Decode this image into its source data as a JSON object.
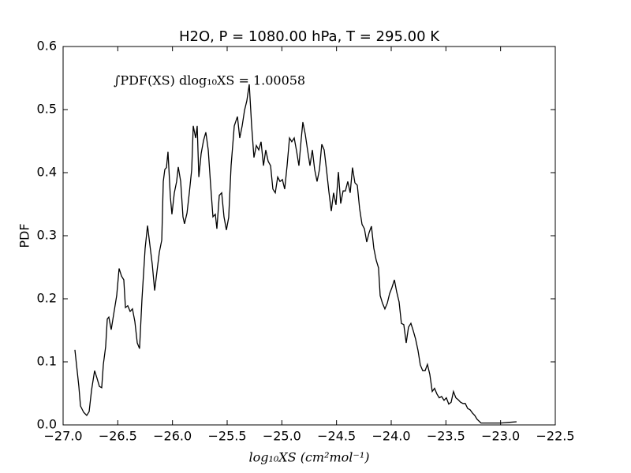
{
  "chart_data": {
    "type": "line",
    "title": "H2O, P = 1080.00 hPa, T = 295.00 K",
    "x_label": "log₁₀XS (cm²mol⁻¹)",
    "y_label": "PDF",
    "annotation": "∫PDF(XS) dlog₁₀XS = 1.00058",
    "xlim": [
      -27,
      -22.5
    ],
    "ylim": [
      0,
      0.6
    ],
    "xticks": [
      {
        "value": -27,
        "label": "−27.0"
      },
      {
        "value": -26.5,
        "label": "−26.5"
      },
      {
        "value": -26,
        "label": "−26.0"
      },
      {
        "value": -25.5,
        "label": "−25.5"
      },
      {
        "value": -25,
        "label": "−25.0"
      },
      {
        "value": -24.5,
        "label": "−24.5"
      },
      {
        "value": -24,
        "label": "−24.0"
      },
      {
        "value": -23.5,
        "label": "−23.5"
      },
      {
        "value": -23,
        "label": "−23.0"
      },
      {
        "value": -22.5,
        "label": "−22.5"
      }
    ],
    "yticks": [
      {
        "value": 0,
        "label": "0.0"
      },
      0.1,
      0.2,
      0.3,
      0.4,
      0.5,
      0.6
    ],
    "grid": false,
    "color": "#000000",
    "x": [
      -26.892,
      -26.856,
      -26.841,
      -26.812,
      -26.784,
      -26.762,
      -26.74,
      -26.712,
      -26.69,
      -26.668,
      -26.647,
      -26.632,
      -26.611,
      -26.596,
      -26.582,
      -26.56,
      -26.539,
      -26.51,
      -26.488,
      -26.466,
      -26.445,
      -26.43,
      -26.409,
      -26.387,
      -26.366,
      -26.344,
      -26.322,
      -26.301,
      -26.279,
      -26.25,
      -26.228,
      -26.207,
      -26.185,
      -26.163,
      -26.142,
      -26.12,
      -26.098,
      -26.084,
      -26.07,
      -26.055,
      -26.041,
      -26.019,
      -26.005,
      -25.983,
      -25.962,
      -25.947,
      -25.925,
      -25.904,
      -25.89,
      -25.867,
      -25.846,
      -25.824,
      -25.81,
      -25.788,
      -25.774,
      -25.759,
      -25.738,
      -25.716,
      -25.695,
      -25.673,
      -25.651,
      -25.63,
      -25.608,
      -25.594,
      -25.572,
      -25.55,
      -25.529,
      -25.507,
      -25.486,
      -25.464,
      -25.435,
      -25.406,
      -25.385,
      -25.363,
      -25.341,
      -25.32,
      -25.298,
      -25.276,
      -25.255,
      -25.233,
      -25.211,
      -25.19,
      -25.168,
      -25.147,
      -25.125,
      -25.103,
      -25.082,
      -25.06,
      -25.038,
      -25.017,
      -24.995,
      -24.974,
      -24.952,
      -24.93,
      -24.909,
      -24.887,
      -24.865,
      -24.844,
      -24.822,
      -24.808,
      -24.786,
      -24.765,
      -24.743,
      -24.721,
      -24.7,
      -24.678,
      -24.656,
      -24.635,
      -24.613,
      -24.592,
      -24.57,
      -24.548,
      -24.527,
      -24.505,
      -24.483,
      -24.462,
      -24.44,
      -24.419,
      -24.397,
      -24.375,
      -24.354,
      -24.332,
      -24.31,
      -24.289,
      -24.267,
      -24.245,
      -24.224,
      -24.202,
      -24.181,
      -24.159,
      -24.137,
      -24.116,
      -24.101,
      -24.08,
      -24.058,
      -24.036,
      -24.015,
      -23.993,
      -23.971,
      -23.95,
      -23.928,
      -23.907,
      -23.885,
      -23.863,
      -23.842,
      -23.82,
      -23.798,
      -23.777,
      -23.755,
      -23.734,
      -23.712,
      -23.69,
      -23.669,
      -23.647,
      -23.625,
      -23.604,
      -23.582,
      -23.561,
      -23.539,
      -23.517,
      -23.496,
      -23.474,
      -23.452,
      -23.431,
      -23.409,
      -23.388,
      -23.366,
      -23.344,
      -23.323,
      -23.301,
      -23.279,
      -23.258,
      -23.236,
      -23.215,
      -23.179,
      -23.106,
      -22.998,
      -22.926,
      -22.854
    ],
    "values": [
      0.119,
      0.061,
      0.03,
      0.02,
      0.015,
      0.021,
      0.055,
      0.086,
      0.074,
      0.061,
      0.059,
      0.096,
      0.124,
      0.168,
      0.171,
      0.151,
      0.174,
      0.205,
      0.248,
      0.236,
      0.23,
      0.186,
      0.189,
      0.18,
      0.184,
      0.164,
      0.13,
      0.121,
      0.199,
      0.28,
      0.316,
      0.286,
      0.255,
      0.213,
      0.243,
      0.274,
      0.293,
      0.386,
      0.405,
      0.408,
      0.433,
      0.361,
      0.334,
      0.368,
      0.386,
      0.409,
      0.386,
      0.33,
      0.319,
      0.336,
      0.368,
      0.405,
      0.474,
      0.455,
      0.474,
      0.393,
      0.43,
      0.451,
      0.464,
      0.436,
      0.38,
      0.33,
      0.334,
      0.311,
      0.364,
      0.368,
      0.33,
      0.309,
      0.329,
      0.411,
      0.474,
      0.489,
      0.455,
      0.474,
      0.499,
      0.514,
      0.54,
      0.474,
      0.424,
      0.443,
      0.436,
      0.449,
      0.411,
      0.436,
      0.418,
      0.411,
      0.374,
      0.368,
      0.393,
      0.386,
      0.389,
      0.374,
      0.411,
      0.455,
      0.449,
      0.455,
      0.434,
      0.411,
      0.455,
      0.48,
      0.461,
      0.436,
      0.411,
      0.436,
      0.405,
      0.386,
      0.405,
      0.445,
      0.436,
      0.405,
      0.37,
      0.339,
      0.368,
      0.349,
      0.401,
      0.351,
      0.371,
      0.371,
      0.386,
      0.368,
      0.408,
      0.384,
      0.38,
      0.343,
      0.318,
      0.311,
      0.29,
      0.305,
      0.315,
      0.28,
      0.261,
      0.249,
      0.205,
      0.193,
      0.184,
      0.193,
      0.208,
      0.218,
      0.23,
      0.211,
      0.195,
      0.161,
      0.159,
      0.13,
      0.155,
      0.161,
      0.149,
      0.136,
      0.118,
      0.095,
      0.086,
      0.086,
      0.096,
      0.08,
      0.053,
      0.058,
      0.049,
      0.043,
      0.045,
      0.039,
      0.043,
      0.033,
      0.036,
      0.053,
      0.043,
      0.04,
      0.036,
      0.034,
      0.034,
      0.026,
      0.024,
      0.019,
      0.015,
      0.009,
      0.003,
      0.003,
      0.003,
      0.004,
      0.005
    ]
  }
}
